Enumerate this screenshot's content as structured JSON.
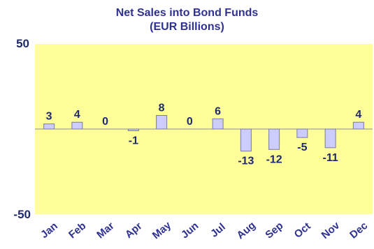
{
  "chart_data": {
    "type": "bar",
    "title": "Net Sales into Bond Funds",
    "subtitle": "(EUR Billions)",
    "categories": [
      "Jan",
      "Feb",
      "Mar",
      "Apr",
      "May",
      "Jun",
      "Jul",
      "Aug",
      "Sep",
      "Oct",
      "Nov",
      "Dec"
    ],
    "values": [
      3,
      4,
      0,
      -1,
      8,
      0,
      6,
      -13,
      -12,
      -5,
      -11,
      4
    ],
    "data_labels": [
      "3",
      "4",
      "0",
      "-1",
      "8",
      "0",
      "6",
      "-13",
      "-12",
      "-5",
      "-11",
      "4"
    ],
    "ylim": [
      -50,
      50
    ],
    "ytick_labels": [
      "50",
      "-50"
    ],
    "grid": false,
    "colors": {
      "plot_background": "#ffff99",
      "bar_fill": "#ccccff",
      "bar_stroke": "#7a7aa0",
      "text": "#2e3192"
    }
  }
}
